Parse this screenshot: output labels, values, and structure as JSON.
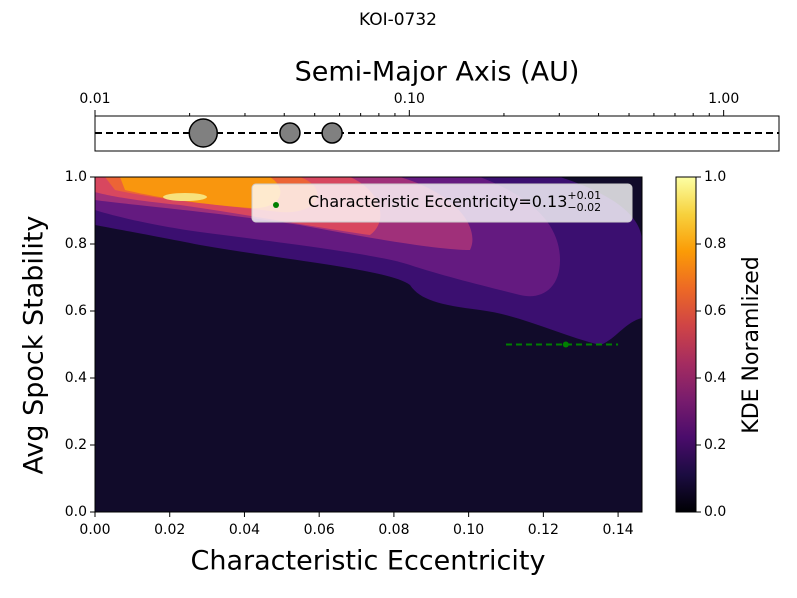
{
  "chart_data": [
    {
      "type": "planets",
      "title": "KOI-0732",
      "xlabel": "Semi-Major Axis (AU)",
      "xscale": "log",
      "xlim": [
        0.01,
        1.5
      ],
      "xticks": [
        {
          "value": 0.01,
          "label": "0.01"
        },
        {
          "value": 0.1,
          "label": "0.10"
        },
        {
          "value": 1,
          "label": "1.00"
        }
      ],
      "xminorticks": [
        0.02,
        0.03,
        0.04,
        0.05,
        0.06,
        0.07,
        0.08,
        0.09,
        0.2,
        0.3,
        0.4,
        0.5,
        0.6,
        0.7,
        0.8,
        0.9
      ],
      "x": [
        0.0221,
        0.0417,
        0.0568
      ],
      "sizes": [
        14,
        10,
        10
      ],
      "color": "#808080"
    },
    {
      "type": "contour",
      "xlabel": "Characteristic Eccentricity",
      "ylabel": "Avg Spock Stability",
      "xlim": [
        0,
        0.1464
      ],
      "ylim": [
        0,
        1
      ],
      "xticks": [
        {
          "value": 0,
          "label": "0.00"
        },
        {
          "value": 0.02,
          "label": "0.02"
        },
        {
          "value": 0.04,
          "label": "0.04"
        },
        {
          "value": 0.06,
          "label": "0.06"
        },
        {
          "value": 0.08,
          "label": "0.08"
        },
        {
          "value": 0.1,
          "label": "0.10"
        },
        {
          "value": 0.12,
          "label": "0.12"
        },
        {
          "value": 0.14,
          "label": "0.14"
        }
      ],
      "yticks": [
        {
          "value": 0,
          "label": "0.0"
        },
        {
          "value": 0.2,
          "label": "0.2"
        },
        {
          "value": 0.4,
          "label": "0.4"
        },
        {
          "value": 0.6,
          "label": "0.6"
        },
        {
          "value": 0.8,
          "label": "0.8"
        },
        {
          "value": 1,
          "label": "1.0"
        }
      ],
      "contour_colors": [
        "#110b2a",
        "#3b0f70",
        "#641a80",
        "#a0307a",
        "#d8475f",
        "#ec6436",
        "#f9960e",
        "#f7e17c"
      ],
      "colormap": [
        "#000004",
        "#1b0c41",
        "#4a0c6b",
        "#781c6d",
        "#a52c60",
        "#cf4446",
        "#ed6925",
        "#fb9b06",
        "#f7d13d",
        "#fcffa4"
      ],
      "colorbar": {
        "label": "KDE Noramlized",
        "lim": [
          0,
          1
        ],
        "ticks": [
          {
            "value": 0,
            "label": "0.0"
          },
          {
            "value": 0.2,
            "label": "0.2"
          },
          {
            "value": 0.4,
            "label": "0.4"
          },
          {
            "value": 0.6,
            "label": "0.6"
          },
          {
            "value": 0.8,
            "label": "0.8"
          },
          {
            "value": 1,
            "label": "1.0"
          }
        ]
      },
      "series": [
        {
          "name": "Characteristic Eccentricity=0.13",
          "name_sup": "+0.01",
          "name_sub": "−0.02",
          "color": "#008000",
          "x": [
            0.126
          ],
          "y": [
            0.5
          ],
          "xerr_minus": [
            0.016
          ],
          "xerr_plus": [
            0.014
          ]
        }
      ]
    }
  ]
}
